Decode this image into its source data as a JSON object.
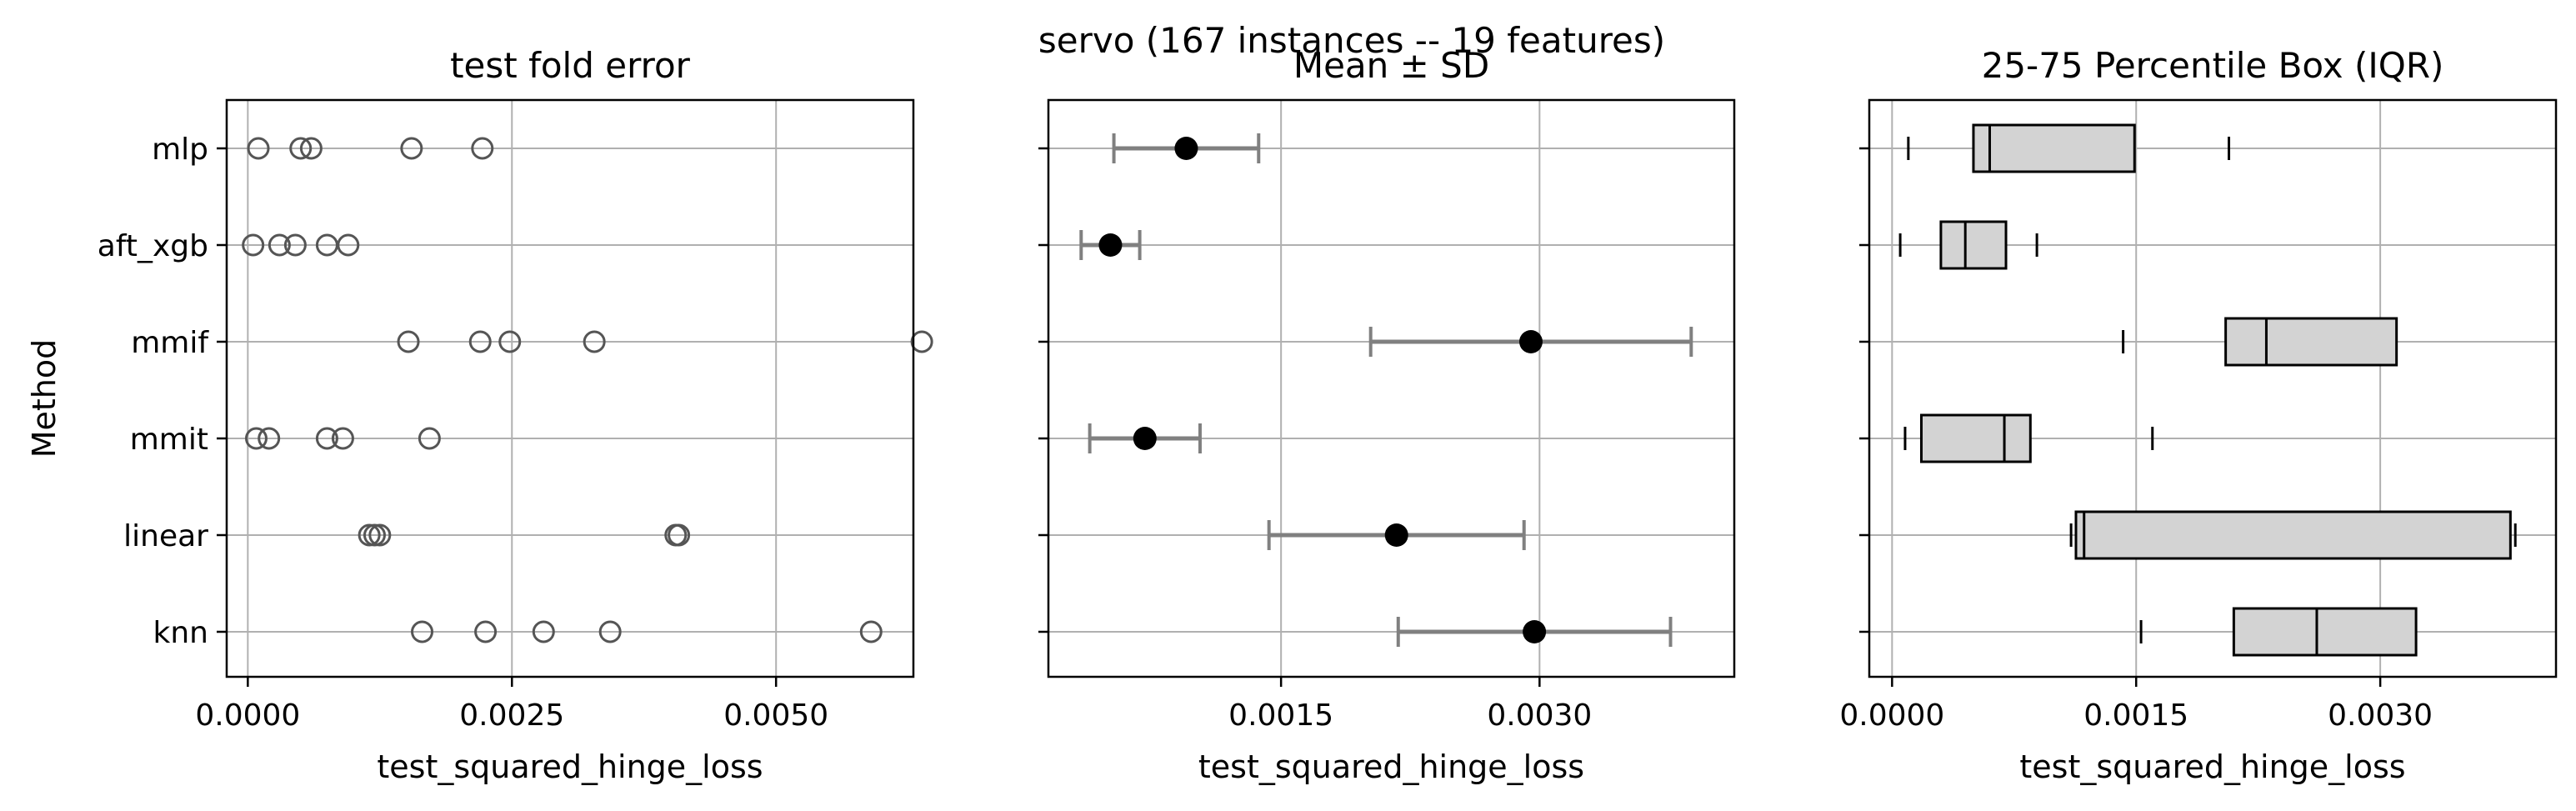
{
  "suptitle": "servo (167 instances -- 19 features)",
  "ylabel": "Method",
  "methods": [
    "mlp",
    "aft_xgb",
    "mmif",
    "mmit",
    "linear",
    "knn"
  ],
  "chart_data": [
    {
      "type": "scatter",
      "title": "test fold error",
      "xlabel": "test_squared_hinge_loss",
      "xlim": [
        -0.0002,
        0.0063
      ],
      "xticks": [
        0.0,
        0.0025,
        0.005
      ],
      "xtick_labels": [
        "0.0000",
        "0.0025",
        "0.0050"
      ],
      "grid": true,
      "points": {
        "mlp": [
          0.0001,
          0.0005,
          0.0006,
          0.00155,
          0.00222
        ],
        "aft_xgb": [
          5e-05,
          0.0003,
          0.00045,
          0.00075,
          0.00095
        ],
        "mmif": [
          0.00152,
          0.0022,
          0.00248,
          0.00328,
          0.00638
        ],
        "mmit": [
          8e-05,
          0.0002,
          0.00075,
          0.0009,
          0.00172
        ],
        "linear": [
          0.00115,
          0.0012,
          0.00125,
          0.00405,
          0.00408
        ],
        "knn": [
          0.00165,
          0.00225,
          0.0028,
          0.00343,
          0.0059
        ]
      }
    },
    {
      "type": "errorbar",
      "title": "Mean ± SD",
      "xlabel": "test_squared_hinge_loss",
      "xlim": [
        0.00015,
        0.00413
      ],
      "xticks": [
        0.0015,
        0.003
      ],
      "xtick_labels": [
        "0.0015",
        "0.0030"
      ],
      "grid": true,
      "mean": {
        "mlp": 0.00095,
        "aft_xgb": 0.00051,
        "mmif": 0.00295,
        "mmit": 0.00071,
        "linear": 0.00217,
        "knn": 0.00297
      },
      "sd": {
        "mlp": 0.00042,
        "aft_xgb": 0.00017,
        "mmif": 0.00093,
        "mmit": 0.00032,
        "linear": 0.00074,
        "knn": 0.00079
      }
    },
    {
      "type": "box",
      "title": "25-75 Percentile Box (IQR)",
      "xlabel": "test_squared_hinge_loss",
      "xlim": [
        -0.00014,
        0.00408
      ],
      "xticks": [
        0.0,
        0.0015,
        0.003
      ],
      "xtick_labels": [
        "0.0000",
        "0.0015",
        "0.0030"
      ],
      "grid": true,
      "boxes": {
        "mlp": {
          "min": 0.0001,
          "q1": 0.0005,
          "median": 0.0006,
          "q3": 0.00149,
          "max": 0.00207
        },
        "aft_xgb": {
          "min": 5e-05,
          "q1": 0.0003,
          "median": 0.00045,
          "q3": 0.0007,
          "max": 0.00089
        },
        "mmif": {
          "min": 0.00142,
          "q1": 0.00205,
          "median": 0.0023,
          "q3": 0.0031,
          "max": 0.0063
        },
        "mmit": {
          "min": 8e-05,
          "q1": 0.00018,
          "median": 0.00069,
          "q3": 0.00085,
          "max": 0.0016
        },
        "linear": {
          "min": 0.0011,
          "q1": 0.00113,
          "median": 0.00118,
          "q3": 0.0038,
          "max": 0.00383
        },
        "knn": {
          "min": 0.00153,
          "q1": 0.0021,
          "median": 0.00261,
          "q3": 0.00322,
          "max": 0.0059
        }
      }
    }
  ]
}
